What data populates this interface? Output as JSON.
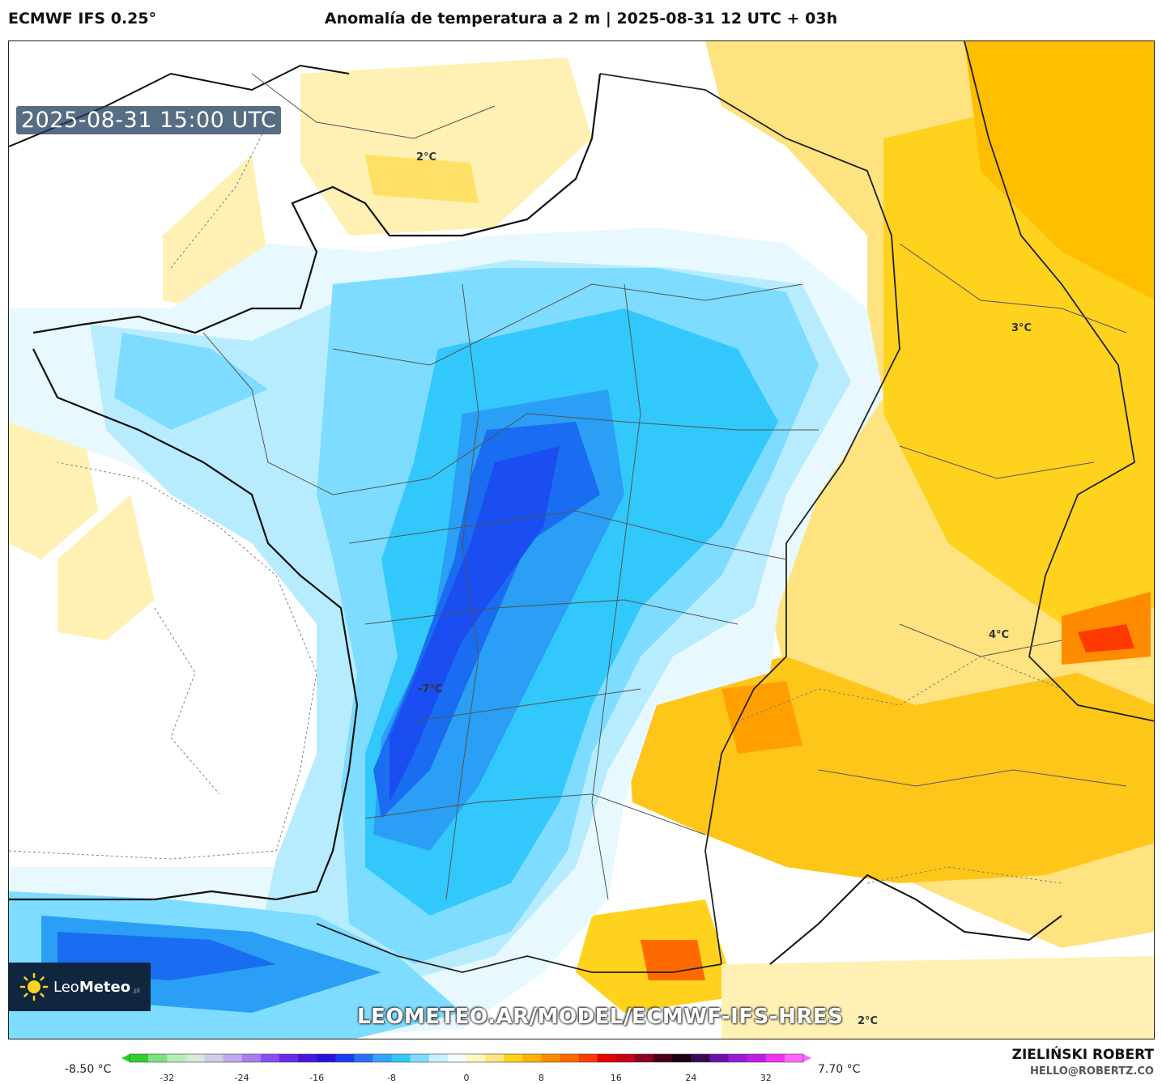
{
  "header": {
    "model": "ECMWF IFS 0.25°",
    "title": "Anomalía de temperatura a 2 m | 2025-08-31 12 UTC + 03h"
  },
  "map": {
    "timestamp": "2025-08-31 15:00 UTC",
    "labels": {
      "channel": "2°C",
      "germany": "3°C",
      "alps": "4°C",
      "aquitaine": "-7°C",
      "mediterranean": "2°C"
    },
    "watermark": "LEOMETEO.AR/MODEL/ECMWF-IFS-HRES",
    "logo": {
      "brand_light": "Leo",
      "brand_bold": "Meteo",
      "suffix": ".pl"
    }
  },
  "colorbar": {
    "min_label": "-8.50 °C",
    "max_label": "7.70 °C",
    "ticks": [
      "-32",
      "-24",
      "-16",
      "-8",
      "0",
      "8",
      "16",
      "24",
      "32"
    ],
    "colors": [
      "#2dd02d",
      "#7ee27e",
      "#b7ecb7",
      "#d7e9d7",
      "#d0cfe6",
      "#c0a8f0",
      "#a77df0",
      "#8a4ff0",
      "#6a2ae8",
      "#4b15e0",
      "#2a10e0",
      "#1a3cf0",
      "#2a70f5",
      "#33a5f8",
      "#33c8fb",
      "#7ddcff",
      "#c6f0ff",
      "#f4fbff",
      "#fff6c2",
      "#ffe680",
      "#ffd21e",
      "#ffb300",
      "#ff8c00",
      "#ff6a00",
      "#ff3a00",
      "#e60000",
      "#c4001a",
      "#8b0020",
      "#4a0015",
      "#1a0010",
      "#3a0a5a",
      "#6a12a8",
      "#9b1ad8",
      "#c01ae8",
      "#ee33ee",
      "#ff66ff"
    ],
    "unit": "°C"
  },
  "author": {
    "name": "ZIELIŃSKI ROBERT",
    "email": "HELLO@ROBERTZ.CO"
  }
}
